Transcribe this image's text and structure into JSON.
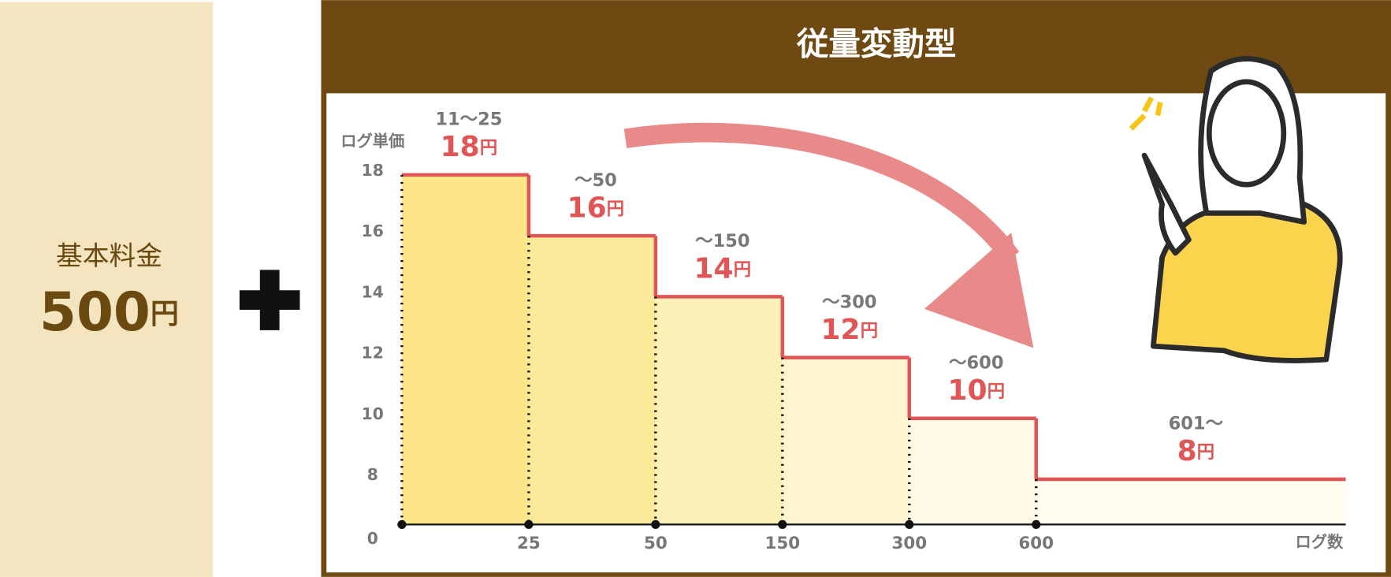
{
  "left": {
    "label": "基本料金",
    "price": "500",
    "unit": "円"
  },
  "chart_data": {
    "type": "step",
    "title": "従量変動型",
    "ylabel": "ログ単価",
    "xlabel": "ログ数",
    "categories": [
      "11〜25",
      "〜50",
      "〜150",
      "〜300",
      "〜600",
      "601〜"
    ],
    "values": [
      18,
      16,
      14,
      12,
      10,
      8
    ],
    "unit": "円",
    "xticks": [
      "25",
      "50",
      "150",
      "300",
      "600"
    ],
    "yticks": [
      0,
      8,
      10,
      12,
      14,
      16,
      18
    ],
    "colors": [
      "#fde68a",
      "#fde99a",
      "#fdefb8",
      "#fef4cf",
      "#fef9e4",
      "#fffcf0"
    ],
    "line_color": "#e05555"
  }
}
